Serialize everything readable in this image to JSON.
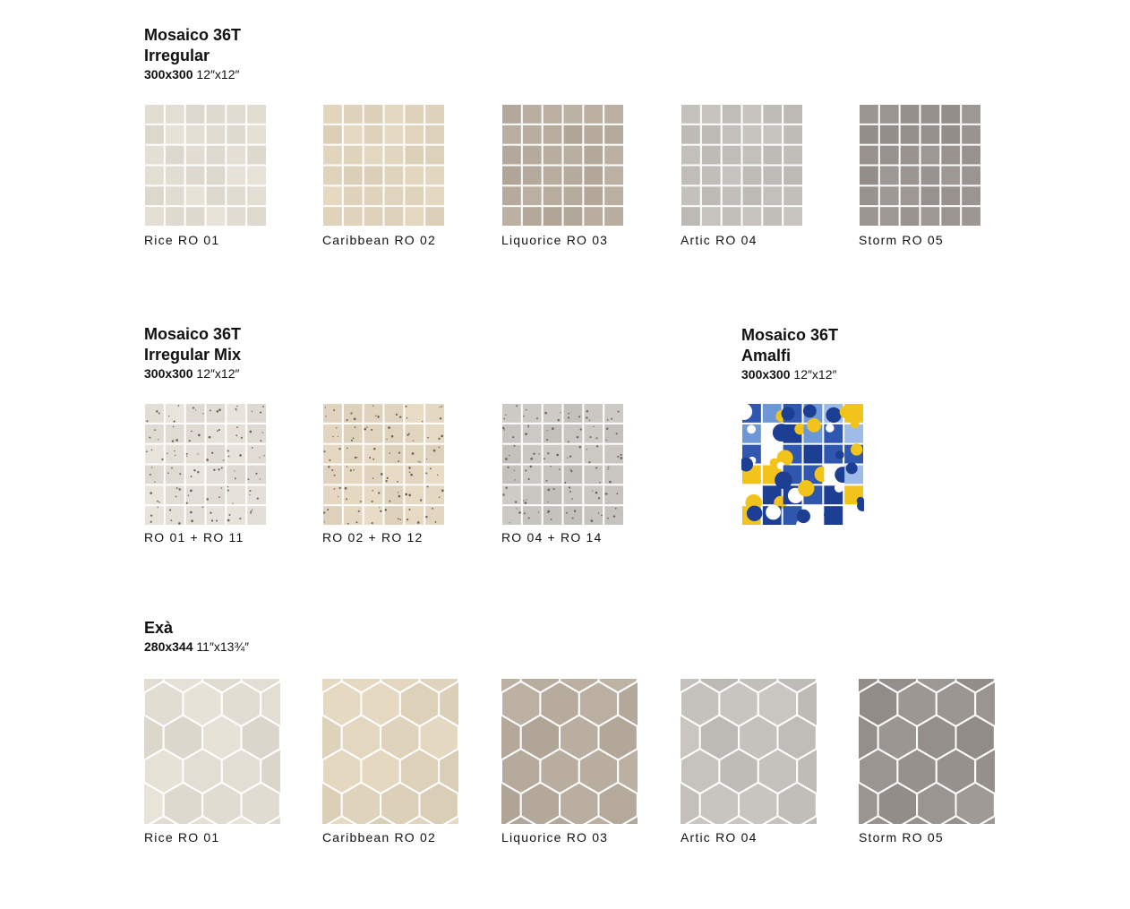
{
  "sections": [
    {
      "title_line1": "Mosaico 36T",
      "title_line2": "Irregular",
      "size_mm": "300x300",
      "size_in": "12″x12″",
      "shape": "square",
      "items": [
        {
          "label": "Rice RO 01",
          "color": "#e2ddd3"
        },
        {
          "label": "Caribbean RO 02",
          "color": "#e1d4bd"
        },
        {
          "label": "Liquorice RO 03",
          "color": "#b6ab9d"
        },
        {
          "label": "Artic RO 04",
          "color": "#c3c0bb"
        },
        {
          "label": "Storm RO 05",
          "color": "#98938e"
        }
      ]
    },
    {
      "title_line1": "Mosaico 36T",
      "title_line2": "Irregular Mix",
      "size_mm": "300x300",
      "size_in": "12″x12″",
      "shape": "square-mix",
      "items": [
        {
          "label": "RO 01 + RO 11",
          "color": "#e4dfd6"
        },
        {
          "label": "RO 02 + RO 12",
          "color": "#e3d6c0"
        },
        {
          "label": "RO 04 + RO 14",
          "color": "#c8c5c1"
        }
      ]
    },
    {
      "title_line1": "Mosaico 36T",
      "title_line2": "Amalfi",
      "size_mm": "300x300",
      "size_in": "12″x12″",
      "shape": "amalfi",
      "items": [
        {
          "label": "",
          "color": "#3a64b8"
        }
      ]
    },
    {
      "title_line1": "Exà",
      "title_line2": "",
      "size_mm": "280x344",
      "size_in": "11″x13¾″",
      "shape": "hexagon",
      "items": [
        {
          "label": "Rice RO 01",
          "color": "#e2ddd3"
        },
        {
          "label": "Caribbean RO 02",
          "color": "#e1d4bd"
        },
        {
          "label": "Liquorice RO 03",
          "color": "#b6ab9d"
        },
        {
          "label": "Artic RO 04",
          "color": "#c3c0bb"
        },
        {
          "label": "Storm RO 05",
          "color": "#98938e"
        }
      ]
    }
  ]
}
